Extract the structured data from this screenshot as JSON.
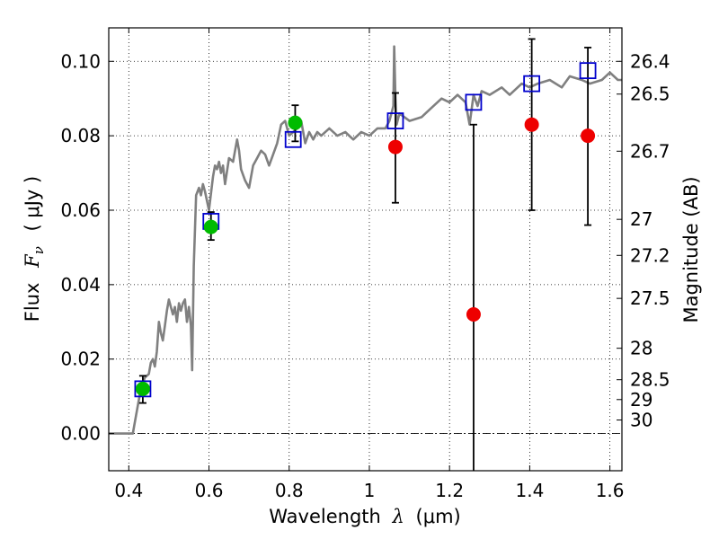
{
  "chart_data": {
    "type": "scatter",
    "xlabel_text": "Wavelength",
    "xlabel_symbol": "λ",
    "xlabel_unit": "(μm)",
    "ylabel_text": "Flux",
    "ylabel_symbol": "F",
    "ylabel_sub": "ν",
    "ylabel_unit": "( μJy )",
    "y2label": "Magnitude (AB)",
    "xlim": [
      0.35,
      1.63
    ],
    "ylim": [
      -0.01,
      0.109
    ],
    "grid": true,
    "grid_style": "dotted",
    "x_ticks": [
      {
        "value": 0.4,
        "label": "0.4"
      },
      {
        "value": 0.6,
        "label": "0.6"
      },
      {
        "value": 0.8,
        "label": "0.8"
      },
      {
        "value": 1.0,
        "label": "1"
      },
      {
        "value": 1.2,
        "label": "1.2"
      },
      {
        "value": 1.4,
        "label": "1.4"
      },
      {
        "value": 1.6,
        "label": "1.6"
      }
    ],
    "y_ticks": [
      {
        "value": 0.0,
        "label": "0.00"
      },
      {
        "value": 0.02,
        "label": "0.02"
      },
      {
        "value": 0.04,
        "label": "0.04"
      },
      {
        "value": 0.06,
        "label": "0.06"
      },
      {
        "value": 0.08,
        "label": "0.08"
      },
      {
        "value": 0.1,
        "label": "0.10"
      }
    ],
    "magnitude_ticks": [
      {
        "mag": 26.4,
        "label": "26.4"
      },
      {
        "mag": 26.5,
        "label": "26.5"
      },
      {
        "mag": 26.7,
        "label": "26.7"
      },
      {
        "mag": 27.0,
        "label": "27"
      },
      {
        "mag": 27.2,
        "label": "27.2"
      },
      {
        "mag": 27.5,
        "label": "27.5"
      },
      {
        "mag": 28.0,
        "label": "28"
      },
      {
        "mag": 28.5,
        "label": "28.5"
      },
      {
        "mag": 29.0,
        "label": "29"
      },
      {
        "mag": 30.0,
        "label": "30"
      }
    ],
    "colors": {
      "spectrum": "#808080",
      "model_box": "#0000cc",
      "green_points": "#00bb00",
      "red_points": "#ee0000",
      "errorbar": "#000000",
      "zero_line": "#000000"
    },
    "spectrum": {
      "x": [
        0.35,
        0.41,
        0.415,
        0.43,
        0.44,
        0.45,
        0.455,
        0.46,
        0.465,
        0.47,
        0.475,
        0.48,
        0.485,
        0.49,
        0.495,
        0.5,
        0.505,
        0.51,
        0.515,
        0.52,
        0.525,
        0.53,
        0.535,
        0.54,
        0.545,
        0.55,
        0.555,
        0.558,
        0.562,
        0.568,
        0.575,
        0.58,
        0.585,
        0.59,
        0.6,
        0.61,
        0.615,
        0.62,
        0.625,
        0.63,
        0.635,
        0.64,
        0.65,
        0.66,
        0.67,
        0.675,
        0.68,
        0.69,
        0.7,
        0.71,
        0.72,
        0.73,
        0.74,
        0.75,
        0.76,
        0.77,
        0.78,
        0.79,
        0.8,
        0.81,
        0.82,
        0.83,
        0.84,
        0.85,
        0.86,
        0.87,
        0.88,
        0.9,
        0.92,
        0.94,
        0.96,
        0.98,
        1.0,
        1.02,
        1.04,
        1.05,
        1.06,
        1.062,
        1.065,
        1.068,
        1.075,
        1.1,
        1.13,
        1.15,
        1.18,
        1.2,
        1.22,
        1.24,
        1.25,
        1.26,
        1.27,
        1.28,
        1.3,
        1.33,
        1.35,
        1.38,
        1.4,
        1.42,
        1.45,
        1.48,
        1.5,
        1.53,
        1.55,
        1.58,
        1.6,
        1.62,
        1.63
      ],
      "y": [
        0.0,
        0.0,
        0.003,
        0.012,
        0.015,
        0.016,
        0.019,
        0.02,
        0.018,
        0.022,
        0.03,
        0.027,
        0.025,
        0.029,
        0.033,
        0.036,
        0.034,
        0.032,
        0.034,
        0.03,
        0.035,
        0.033,
        0.035,
        0.036,
        0.03,
        0.034,
        0.029,
        0.017,
        0.045,
        0.064,
        0.066,
        0.064,
        0.067,
        0.065,
        0.06,
        0.069,
        0.072,
        0.071,
        0.073,
        0.07,
        0.072,
        0.067,
        0.074,
        0.073,
        0.079,
        0.076,
        0.071,
        0.068,
        0.066,
        0.072,
        0.074,
        0.076,
        0.075,
        0.072,
        0.075,
        0.078,
        0.083,
        0.084,
        0.08,
        0.081,
        0.082,
        0.084,
        0.078,
        0.081,
        0.079,
        0.081,
        0.08,
        0.082,
        0.08,
        0.081,
        0.079,
        0.081,
        0.08,
        0.082,
        0.082,
        0.084,
        0.088,
        0.104,
        0.09,
        0.083,
        0.086,
        0.084,
        0.085,
        0.087,
        0.09,
        0.089,
        0.091,
        0.089,
        0.083,
        0.091,
        0.088,
        0.092,
        0.091,
        0.093,
        0.091,
        0.094,
        0.093,
        0.094,
        0.095,
        0.093,
        0.096,
        0.095,
        0.094,
        0.095,
        0.097,
        0.095,
        0.095
      ]
    },
    "series": [
      {
        "marker": "open-square",
        "color": "#0000cc",
        "x": [
          0.435,
          0.605,
          0.81,
          1.065,
          1.26,
          1.405,
          1.545
        ],
        "y": [
          0.012,
          0.057,
          0.079,
          0.084,
          0.089,
          0.094,
          0.0975
        ]
      },
      {
        "marker": "filled-circle",
        "color": "#00bb00",
        "x": [
          0.435,
          0.605,
          0.815
        ],
        "y": [
          0.012,
          0.0555,
          0.0835
        ],
        "yerr_low": [
          0.0082,
          0.052,
          0.0785
        ],
        "yerr_high": [
          0.0155,
          0.0595,
          0.0882
        ]
      },
      {
        "marker": "filled-circle",
        "color": "#ee0000",
        "x": [
          1.065,
          1.26,
          1.405,
          1.545
        ],
        "y": [
          0.077,
          0.032,
          0.083,
          0.08
        ],
        "yerr_low": [
          0.062,
          -0.011,
          0.06,
          0.056
        ],
        "yerr_high": [
          0.0915,
          0.083,
          0.106,
          0.1037
        ]
      }
    ]
  }
}
